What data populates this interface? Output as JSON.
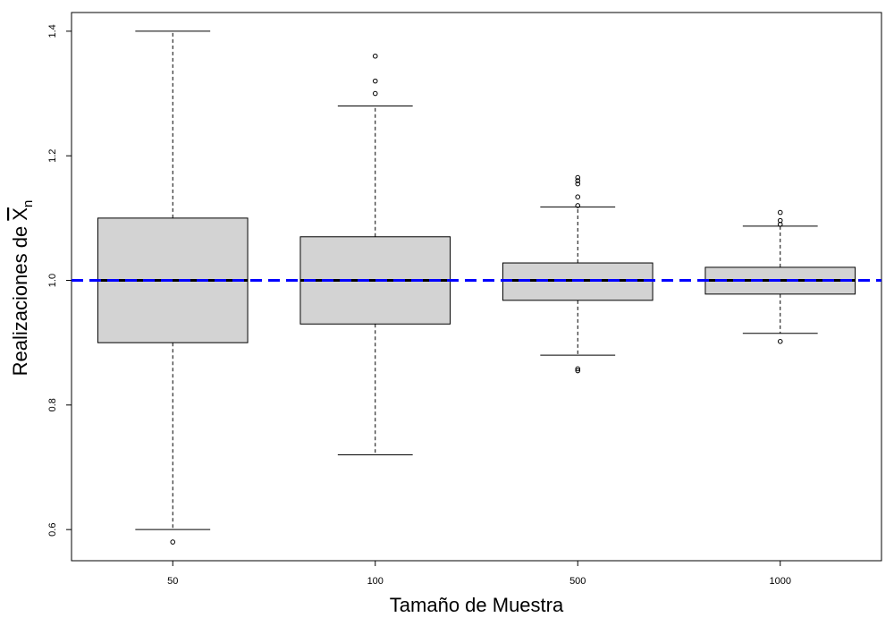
{
  "chart_data": {
    "type": "box",
    "xlabel": "Tamaño de Muestra",
    "ylabel": {
      "prefix": "Realizaciones de ",
      "symbol": "X",
      "subscript": "n",
      "overline": true
    },
    "ylim": [
      0.55,
      1.43
    ],
    "yticks": [
      0.6,
      0.8,
      1.0,
      1.2,
      1.4
    ],
    "ytick_labels": [
      "0.6",
      "0.8",
      "1.0",
      "1.2",
      "1.4"
    ],
    "categories": [
      "50",
      "100",
      "500",
      "1000"
    ],
    "boxes": [
      {
        "category": "50",
        "whisker_low": 0.6,
        "q1": 0.9,
        "median": 1.0,
        "q3": 1.1,
        "whisker_high": 1.4,
        "outliers": [
          0.58
        ]
      },
      {
        "category": "100",
        "whisker_low": 0.72,
        "q1": 0.93,
        "median": 1.0,
        "q3": 1.07,
        "whisker_high": 1.28,
        "outliers": [
          1.3,
          1.32,
          1.36
        ]
      },
      {
        "category": "500",
        "whisker_low": 0.88,
        "q1": 0.968,
        "median": 1.0,
        "q3": 1.028,
        "whisker_high": 1.118,
        "outliers": [
          0.855,
          0.858,
          1.12,
          1.134,
          1.155,
          1.16,
          1.165
        ]
      },
      {
        "category": "1000",
        "whisker_low": 0.915,
        "q1": 0.978,
        "median": 1.0,
        "q3": 1.021,
        "whisker_high": 1.087,
        "outliers": [
          0.902,
          1.09,
          1.096,
          1.109
        ]
      }
    ],
    "reference_line": {
      "y": 1.0,
      "color": "#0000ff",
      "style": "dashed"
    },
    "box_fill": "#d3d3d3",
    "grid": false,
    "legend": "none"
  }
}
